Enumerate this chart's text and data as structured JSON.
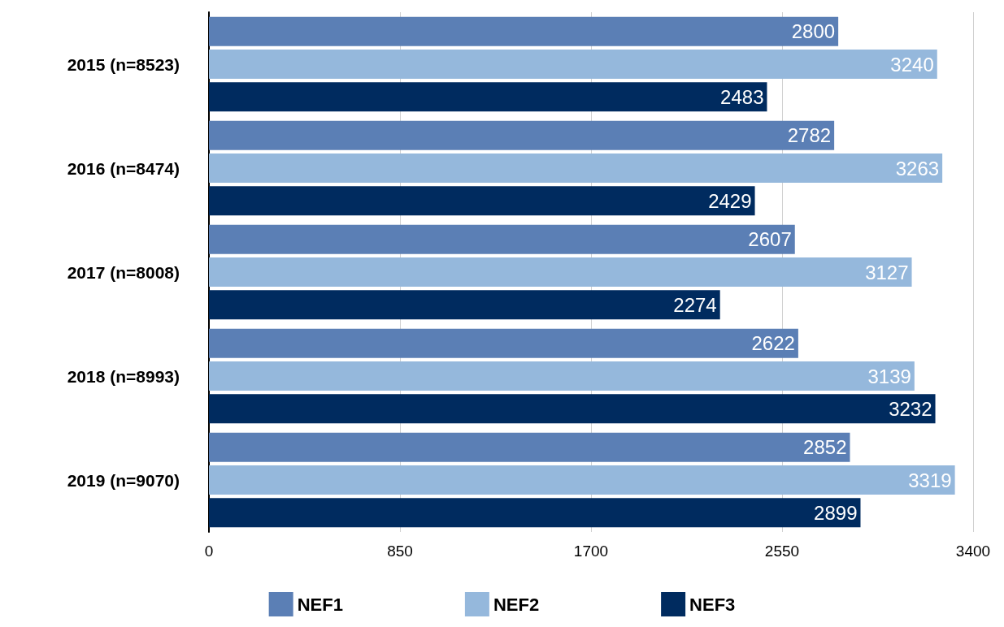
{
  "chart_data": {
    "type": "bar",
    "orientation": "horizontal",
    "categories": [
      "2015 (n=8523)",
      "2016 (n=8474)",
      "2017 (n=8008)",
      "2018 (n=8993)",
      "2019 (n=9070)"
    ],
    "series": [
      {
        "name": "NEF1",
        "color": "#5b7fb5",
        "values": [
          2800,
          2782,
          2607,
          2622,
          2852
        ]
      },
      {
        "name": "NEF2",
        "color": "#95b8dc",
        "values": [
          3240,
          3263,
          3127,
          3139,
          3319
        ]
      },
      {
        "name": "NEF3",
        "color": "#002b5f",
        "values": [
          2483,
          2429,
          2274,
          3232,
          2899
        ]
      }
    ],
    "xlim": [
      0,
      3400
    ],
    "xticks": [
      0,
      850,
      1700,
      2550,
      3400
    ],
    "grid": "x",
    "legend": "bottom",
    "data_labels": true
  }
}
